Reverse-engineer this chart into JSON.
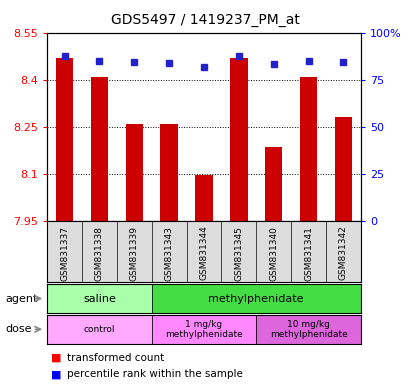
{
  "title": "GDS5497 / 1419237_PM_at",
  "samples": [
    "GSM831337",
    "GSM831338",
    "GSM831339",
    "GSM831343",
    "GSM831344",
    "GSM831345",
    "GSM831340",
    "GSM831341",
    "GSM831342"
  ],
  "red_values": [
    8.47,
    8.41,
    8.26,
    8.26,
    8.095,
    8.47,
    8.185,
    8.41,
    8.28
  ],
  "blue_values": [
    8.475,
    8.46,
    8.455,
    8.452,
    8.44,
    8.475,
    8.45,
    8.458,
    8.455
  ],
  "ylim_left": [
    7.95,
    8.55
  ],
  "ylim_right": [
    0,
    100
  ],
  "yticks_left": [
    7.95,
    8.1,
    8.25,
    8.4,
    8.55
  ],
  "yticks_right": [
    0,
    25,
    50,
    75,
    100
  ],
  "ytick_labels_right": [
    "0",
    "25",
    "50",
    "75",
    "100%"
  ],
  "bar_bottom": 7.95,
  "bar_color": "#cc0000",
  "dot_color": "#2222cc",
  "agent_groups": [
    {
      "label": "saline",
      "start": 0,
      "end": 3,
      "color": "#aaffaa"
    },
    {
      "label": "methylphenidate",
      "start": 3,
      "end": 9,
      "color": "#44dd44"
    }
  ],
  "dose_groups": [
    {
      "label": "control",
      "start": 0,
      "end": 3,
      "color": "#ffaaff"
    },
    {
      "label": "1 mg/kg\nmethylphenidate",
      "start": 3,
      "end": 6,
      "color": "#ff88ff"
    },
    {
      "label": "10 mg/kg\nmethylphenidate",
      "start": 6,
      "end": 9,
      "color": "#dd66dd"
    }
  ],
  "legend_red": "transformed count",
  "legend_blue": "percentile rank within the sample",
  "background_color": "#ffffff",
  "plot_bg": "#ffffff",
  "title_fontsize": 10,
  "tick_fontsize": 8,
  "sample_fontsize": 6.5,
  "label_fontsize": 8,
  "legend_fontsize": 7.5
}
